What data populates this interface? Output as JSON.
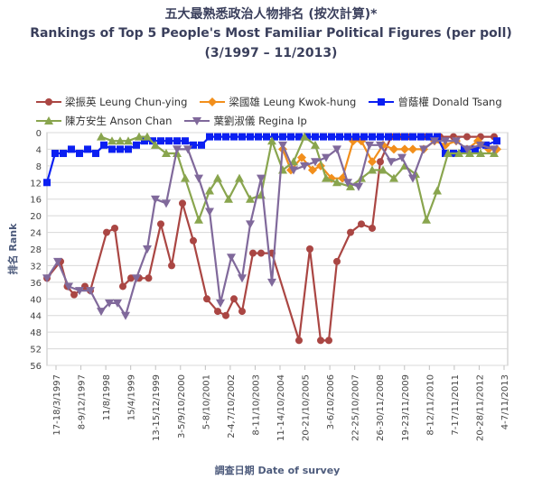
{
  "title_zh": "五大最熟悉政治人物排名 (按次計算)*",
  "title_en": "Rankings of Top 5 People's Most Familiar Political Figures (per poll)",
  "period": "(3/1997 – 11/2013)",
  "legend": [
    {
      "label": "梁振英 Leung Chun-ying",
      "series": 0
    },
    {
      "label": "梁國雄 Leung Kwok-hung",
      "series": 1
    },
    {
      "label": "曾蔭權 Donald Tsang",
      "series": 2
    },
    {
      "label": "陳方安生 Anson Chan",
      "series": 3
    },
    {
      "label": "葉劉淑儀 Regina Ip",
      "series": 4
    }
  ],
  "chart_data": {
    "type": "line",
    "title": "Rankings of Top 5 People's Most Familiar Political Figures (per poll)",
    "xlabel": "調查日期 Date of survey",
    "ylabel": "排名 Rank",
    "ylim": [
      56,
      0
    ],
    "y_ticks": [
      0,
      4,
      8,
      12,
      16,
      20,
      24,
      28,
      32,
      36,
      40,
      44,
      48,
      52,
      56
    ],
    "y_reversed": true,
    "grid": true,
    "x_tick_labels": [
      "17-18/3/1997",
      "8-9/12/1997",
      "11/8/1998",
      "15/4/1999",
      "13-15/12/1999",
      "3-5/9/10/2000",
      "5-8/10/2001",
      "2-4,7/10/2002",
      "8-11/10/2003",
      "11-14/10/2004",
      "20-21/10/2005",
      "3-6/10/2006",
      "22-25/10/2007",
      "26-30/11/2008",
      "19-23/11/2009",
      "8-12/11/2010",
      "7-17/11/2011",
      "20-28/11/2012",
      "4-7/11/2013"
    ],
    "x_range": [
      1997.0,
      2014.0
    ],
    "series": [
      {
        "name": "梁振英 Leung Chun-ying",
        "color": "#aa4643",
        "marker": "circle",
        "x": [
          1997.0,
          1997.5,
          1997.75,
          1998.0,
          1998.4,
          1998.6,
          1999.2,
          1999.5,
          1999.8,
          2000.1,
          2000.4,
          2000.75,
          2001.2,
          2001.6,
          2002.0,
          2002.4,
          2002.9,
          2003.3,
          2003.6,
          2003.9,
          2004.2,
          2004.6,
          2004.9,
          2005.3,
          2006.3,
          2006.7,
          2007.1,
          2007.4,
          2007.7,
          2008.2,
          2008.6,
          2009.0,
          2009.3,
          2009.7,
          2010.0,
          2010.4,
          2011.0,
          2011.5,
          2012.0,
          2012.5,
          2013.0,
          2013.5
        ],
        "y": [
          35,
          31,
          37,
          39,
          37,
          38,
          24,
          23,
          37,
          35,
          35,
          35,
          22,
          32,
          17,
          26,
          40,
          43,
          44,
          40,
          43,
          29,
          29,
          29,
          50,
          28,
          50,
          50,
          31,
          24,
          22,
          23,
          7,
          1,
          1,
          1,
          1,
          1,
          1,
          1,
          1,
          1
        ]
      },
      {
        "name": "梁國雄 Leung Kwok-hung",
        "color": "#f28f1c",
        "marker": "diamond",
        "x": [
          2005.7,
          2006.0,
          2006.4,
          2006.8,
          2007.1,
          2007.5,
          2007.9,
          2008.3,
          2008.6,
          2009.0,
          2009.4,
          2009.8,
          2010.2,
          2010.5,
          2010.9,
          2011.3,
          2011.7,
          2012.1,
          2012.5,
          2012.9,
          2013.3,
          2013.6
        ],
        "y": [
          4,
          9,
          6,
          9,
          8,
          11,
          11,
          2,
          2,
          7,
          3,
          4,
          4,
          4,
          4,
          2,
          3,
          2,
          4,
          2,
          4,
          4
        ]
      },
      {
        "name": "曾蔭權 Donald Tsang",
        "color": "#0b1ff2",
        "marker": "square",
        "x": [
          1997.0,
          1997.3,
          1997.6,
          1997.9,
          1998.2,
          1998.5,
          1998.8,
          1999.1,
          1999.4,
          1999.7,
          2000.0,
          2000.3,
          2000.6,
          2000.9,
          2001.2,
          2001.5,
          2001.8,
          2002.1,
          2002.4,
          2002.7,
          2003.0,
          2003.3,
          2003.6,
          2003.9,
          2004.2,
          2004.5,
          2004.8,
          2005.1,
          2005.4,
          2005.7,
          2006.0,
          2006.3,
          2006.6,
          2006.9,
          2007.2,
          2007.5,
          2007.8,
          2008.1,
          2008.4,
          2008.7,
          2009.0,
          2009.3,
          2009.6,
          2009.9,
          2010.2,
          2010.5,
          2010.8,
          2011.1,
          2011.4,
          2011.7,
          2012.0,
          2012.4,
          2012.8,
          2013.2,
          2013.6
        ],
        "y": [
          12,
          5,
          5,
          4,
          5,
          4,
          5,
          3,
          4,
          4,
          4,
          3,
          2,
          2,
          2,
          2,
          2,
          2,
          3,
          3,
          1,
          1,
          1,
          1,
          1,
          1,
          1,
          1,
          1,
          1,
          1,
          1,
          1,
          1,
          1,
          1,
          1,
          1,
          1,
          1,
          1,
          1,
          1,
          1,
          1,
          1,
          1,
          1,
          1,
          5,
          5,
          4,
          4,
          3,
          2
        ]
      },
      {
        "name": "陳方安生 Anson Chan",
        "color": "#89a54e",
        "marker": "triangle",
        "x": [
          1999.0,
          1999.4,
          1999.7,
          2000.0,
          2000.4,
          2000.7,
          2001.0,
          2001.4,
          2001.8,
          2002.1,
          2002.6,
          2003.0,
          2003.3,
          2003.7,
          2004.1,
          2004.5,
          2004.9,
          2005.3,
          2005.7,
          2006.1,
          2006.5,
          2006.9,
          2007.3,
          2007.7,
          2008.2,
          2008.6,
          2009.0,
          2009.4,
          2009.8,
          2010.2,
          2010.6,
          2011.0,
          2011.4,
          2011.8,
          2012.2,
          2012.6,
          2013.0,
          2013.5
        ],
        "y": [
          1,
          2,
          2,
          2,
          1,
          1,
          3,
          5,
          5,
          11,
          21,
          14,
          11,
          16,
          11,
          16,
          15,
          2,
          9,
          7,
          1,
          3,
          11,
          12,
          13,
          11,
          9,
          9,
          11,
          8,
          10,
          21,
          14,
          5,
          5,
          5,
          5,
          5
        ]
      },
      {
        "name": "葉劉淑儀 Regina Ip",
        "color": "#80699b",
        "marker": "triangle-down",
        "x": [
          1997.0,
          1997.4,
          1997.8,
          1998.2,
          1998.6,
          1999.0,
          1999.3,
          1999.6,
          1999.9,
          2000.3,
          2000.7,
          2001.0,
          2001.4,
          2001.8,
          2002.2,
          2002.6,
          2003.0,
          2003.4,
          2003.8,
          2004.2,
          2004.5,
          2004.9,
          2005.3,
          2005.7,
          2006.1,
          2006.5,
          2006.9,
          2007.3,
          2007.7,
          2008.1,
          2008.5,
          2008.9,
          2009.3,
          2009.7,
          2010.1,
          2010.5,
          2010.9,
          2011.3,
          2011.7,
          2012.1,
          2012.5,
          2013.0,
          2013.5
        ],
        "y": [
          35,
          31,
          37,
          38,
          38,
          43,
          41,
          41,
          44,
          35,
          28,
          16,
          17,
          4,
          4,
          11,
          19,
          41,
          30,
          35,
          22,
          11,
          36,
          3,
          9,
          8,
          7,
          6,
          4,
          12,
          13,
          3,
          3,
          7,
          6,
          11,
          4,
          2,
          2,
          2,
          4,
          3,
          4
        ]
      }
    ]
  }
}
